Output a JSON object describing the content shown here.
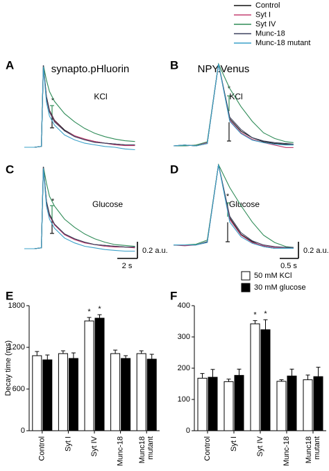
{
  "chart_data": [
    {
      "type": "line",
      "panel": "A",
      "title": "synapto.pHluorin",
      "annotation": "KCl",
      "star": "*",
      "x": [
        0,
        1,
        1.7,
        1.9,
        2.2,
        2.5,
        3,
        4,
        5,
        6,
        7,
        8,
        9,
        10,
        11
      ],
      "series": [
        {
          "name": "Control",
          "color": "#111111",
          "values": [
            0,
            0,
            0.01,
            1,
            0.62,
            0.45,
            0.33,
            0.21,
            0.14,
            0.1,
            0.07,
            0.05,
            0.04,
            0.03,
            0.03
          ]
        },
        {
          "name": "Syt I",
          "color": "#c23a6e",
          "values": [
            0,
            0,
            0.01,
            1,
            0.6,
            0.44,
            0.32,
            0.2,
            0.14,
            0.1,
            0.07,
            0.05,
            0.03,
            0.02,
            0.02
          ]
        },
        {
          "name": "Syt IV",
          "color": "#2e8b57",
          "values": [
            0,
            0,
            0.01,
            1,
            0.82,
            0.68,
            0.56,
            0.41,
            0.31,
            0.23,
            0.17,
            0.13,
            0.1,
            0.08,
            0.07
          ]
        },
        {
          "name": "Munc-18",
          "color": "#3a3f5c",
          "values": [
            0,
            0,
            0.01,
            1,
            0.6,
            0.43,
            0.31,
            0.2,
            0.13,
            0.09,
            0.06,
            0.05,
            0.04,
            0.03,
            0.03
          ]
        },
        {
          "name": "Munc-18 mutant",
          "color": "#3aa0c8",
          "values": [
            0,
            0,
            0.01,
            0.98,
            0.55,
            0.38,
            0.27,
            0.15,
            0.09,
            0.05,
            0.03,
            0.01,
            0,
            -0.02,
            -0.03
          ]
        }
      ]
    },
    {
      "type": "line",
      "panel": "B",
      "title": "NPY.Venus",
      "annotation": "KCl",
      "star": "*",
      "x": [
        0,
        0.3,
        0.6,
        0.9,
        1.2,
        1.5,
        1.8,
        2.1,
        2.4,
        2.7,
        3.0,
        3.2
      ],
      "series": [
        {
          "color": "#111111",
          "values": [
            0,
            0.01,
            0,
            0.03,
            1,
            0.33,
            0.18,
            0.1,
            0.05,
            0.03,
            0.02,
            0.02
          ]
        },
        {
          "color": "#c23a6e",
          "values": [
            0,
            0,
            0.01,
            0.04,
            1,
            0.31,
            0.16,
            0.08,
            0.04,
            0.01,
            -0.02,
            -0.02
          ]
        },
        {
          "color": "#2e8b57",
          "values": [
            0,
            0,
            0.01,
            0.05,
            1,
            0.7,
            0.48,
            0.3,
            0.16,
            0.09,
            0.05,
            0.04
          ]
        },
        {
          "color": "#3a3f5c",
          "values": [
            0,
            0.01,
            0,
            0.03,
            1,
            0.35,
            0.2,
            0.1,
            0.06,
            0.04,
            0.03,
            0.02
          ]
        },
        {
          "color": "#3aa0c8",
          "values": [
            0,
            0.01,
            0,
            0.03,
            1,
            0.3,
            0.15,
            0.07,
            0.04,
            0.02,
            0.01,
            0.01
          ]
        }
      ]
    },
    {
      "type": "line",
      "panel": "C",
      "annotation": "Glucose",
      "star": "*",
      "scale_y": "0.2 a.u.",
      "scale_x": "2 s",
      "x": [
        0,
        1,
        1.7,
        1.9,
        2.2,
        2.5,
        3,
        4,
        5,
        6,
        7,
        8,
        9,
        10,
        11
      ],
      "series": [
        {
          "color": "#111111",
          "values": [
            0,
            0,
            0.01,
            1,
            0.58,
            0.42,
            0.3,
            0.18,
            0.12,
            0.08,
            0.05,
            0.04,
            0.03,
            0.02,
            0.02
          ]
        },
        {
          "color": "#c23a6e",
          "values": [
            0,
            0,
            0.01,
            1,
            0.56,
            0.4,
            0.29,
            0.17,
            0.11,
            0.07,
            0.05,
            0.03,
            0.02,
            0.02,
            0.01
          ]
        },
        {
          "color": "#2e8b57",
          "values": [
            0,
            0,
            0.01,
            1,
            0.8,
            0.64,
            0.52,
            0.36,
            0.26,
            0.18,
            0.12,
            0.08,
            0.05,
            0.04,
            0.03
          ]
        },
        {
          "color": "#3a3f5c",
          "values": [
            0,
            0,
            0.01,
            1,
            0.57,
            0.41,
            0.3,
            0.18,
            0.12,
            0.08,
            0.05,
            0.04,
            0.03,
            0.02,
            0.02
          ]
        },
        {
          "color": "#3aa0c8",
          "values": [
            0,
            0,
            0.01,
            0.98,
            0.52,
            0.36,
            0.25,
            0.13,
            0.07,
            0.03,
            0.01,
            -0.01,
            -0.02,
            -0.03,
            -0.03
          ]
        }
      ]
    },
    {
      "type": "line",
      "panel": "D",
      "annotation": "Glucose",
      "star": "*",
      "scale_y": "0.2 a.u.",
      "scale_x": "0.5 s",
      "x": [
        0,
        0.3,
        0.6,
        0.9,
        1.2,
        1.5,
        1.8,
        2.1,
        2.4,
        2.7,
        3.0,
        3.2
      ],
      "series": [
        {
          "color": "#111111",
          "values": [
            0.02,
            0.02,
            0.02,
            0.06,
            1,
            0.35,
            0.15,
            0.06,
            0,
            -0.02,
            -0.02,
            -0.02
          ]
        },
        {
          "color": "#c23a6e",
          "values": [
            0.02,
            0.01,
            0.02,
            0.05,
            1,
            0.33,
            0.14,
            0.05,
            0.01,
            -0.01,
            -0.01,
            -0.01
          ]
        },
        {
          "color": "#2e8b57",
          "values": [
            0.02,
            0.02,
            0.03,
            0.08,
            1,
            0.72,
            0.5,
            0.3,
            0.14,
            0.05,
            0,
            -0.01
          ]
        },
        {
          "color": "#3a3f5c",
          "values": [
            0.02,
            0.02,
            0.02,
            0.06,
            1,
            0.37,
            0.17,
            0.07,
            0.02,
            0,
            -0.01,
            -0.01
          ]
        },
        {
          "color": "#3aa0c8",
          "values": [
            0.02,
            0.02,
            0.02,
            0.05,
            1,
            0.3,
            0.12,
            0.04,
            0,
            -0.02,
            -0.02,
            -0.02
          ]
        }
      ]
    },
    {
      "type": "bar",
      "panel": "E",
      "ylabel": "Decay time (ms)",
      "stars": [
        "*",
        "*"
      ],
      "categories": [
        "Control",
        "Syt I",
        "Syt IV",
        "Munc-18",
        "Munc18\nmutant"
      ],
      "ylim": [
        0,
        1800
      ],
      "yticks": [
        0,
        600,
        1200,
        1800
      ],
      "series": [
        {
          "name": "50 mM KCl",
          "color": "#ffffff",
          "values": [
            1080,
            1110,
            1580,
            1110,
            1110
          ],
          "errors": [
            60,
            40,
            50,
            50,
            40
          ]
        },
        {
          "name": "30 mM glucose",
          "color": "#000000",
          "values": [
            1020,
            1040,
            1620,
            1040,
            1030
          ],
          "errors": [
            70,
            80,
            50,
            40,
            70
          ]
        }
      ]
    },
    {
      "type": "bar",
      "panel": "F",
      "stars": [
        "*",
        "*"
      ],
      "categories": [
        "Control",
        "Syt I",
        "Syt IV",
        "Munc-18",
        "Munc18\nmutant"
      ],
      "ylim": [
        0,
        400
      ],
      "yticks": [
        0,
        100,
        200,
        300,
        400
      ],
      "series": [
        {
          "color": "#ffffff",
          "values": [
            168,
            157,
            342,
            158,
            163
          ],
          "errors": [
            15,
            8,
            10,
            5,
            15
          ]
        },
        {
          "color": "#000000",
          "values": [
            171,
            177,
            323,
            175,
            173
          ],
          "errors": [
            25,
            20,
            32,
            22,
            30
          ]
        }
      ]
    }
  ]
}
